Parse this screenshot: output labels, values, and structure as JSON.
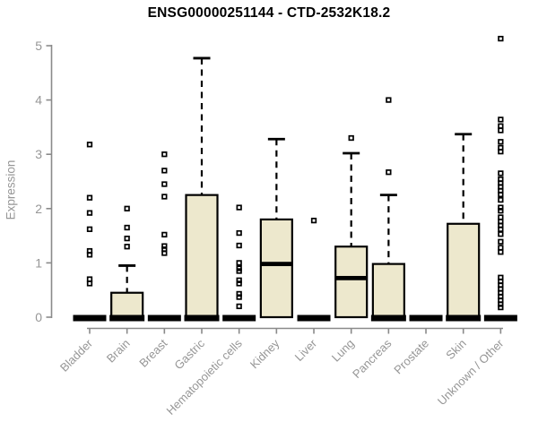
{
  "chart_data": {
    "type": "boxplot",
    "title": "ENSG00000251144 - CTD-2532K18.2",
    "ylabel": "Expression",
    "xlabel": "",
    "ylim": [
      0,
      5
    ],
    "yticks": [
      0,
      1,
      2,
      3,
      4,
      5
    ],
    "grid": false,
    "legend": "none",
    "categories": [
      "Bladder",
      "Brain",
      "Breast",
      "Gastric",
      "Hematopoietic cells",
      "Kidney",
      "Liver",
      "Lung",
      "Pancreas",
      "Prostate",
      "Skin",
      "Unknown / Other"
    ],
    "series": [
      {
        "category": "Bladder",
        "q1": 0,
        "median": 0,
        "q3": 0,
        "whisker_low": 0,
        "whisker_high": 0,
        "outliers": [
          0.62,
          0.7,
          1.15,
          1.22,
          1.62,
          1.92,
          2.2,
          3.18
        ]
      },
      {
        "category": "Brain",
        "q1": 0,
        "median": 0,
        "q3": 0.45,
        "whisker_low": 0,
        "whisker_high": 0.95,
        "outliers": [
          1.3,
          1.45,
          1.65,
          2.0
        ]
      },
      {
        "category": "Breast",
        "q1": 0,
        "median": 0,
        "q3": 0,
        "whisker_low": 0,
        "whisker_high": 0,
        "outliers": [
          1.18,
          1.25,
          1.31,
          1.52,
          2.22,
          2.45,
          2.7,
          3.0
        ]
      },
      {
        "category": "Gastric",
        "q1": 0,
        "median": 0,
        "q3": 2.25,
        "whisker_low": 0,
        "whisker_high": 4.77,
        "outliers": []
      },
      {
        "category": "Hematopoietic cells",
        "q1": 0,
        "median": 0,
        "q3": 0,
        "whisker_low": 0,
        "whisker_high": 0,
        "outliers": [
          0.2,
          0.37,
          0.43,
          0.62,
          0.68,
          0.85,
          0.9,
          1.0,
          1.32,
          1.55,
          2.02
        ]
      },
      {
        "category": "Kidney",
        "q1": 0,
        "median": 0.98,
        "q3": 1.8,
        "whisker_low": 0,
        "whisker_high": 3.28,
        "outliers": []
      },
      {
        "category": "Liver",
        "q1": 0,
        "median": 0,
        "q3": 0,
        "whisker_low": 0,
        "whisker_high": 0,
        "outliers": [
          1.78
        ]
      },
      {
        "category": "Lung",
        "q1": 0,
        "median": 0.72,
        "q3": 1.3,
        "whisker_low": 0,
        "whisker_high": 3.02,
        "outliers": [
          3.3
        ]
      },
      {
        "category": "Pancreas",
        "q1": 0,
        "median": 0,
        "q3": 0.98,
        "whisker_low": 0,
        "whisker_high": 2.25,
        "outliers": [
          2.67,
          4.0
        ]
      },
      {
        "category": "Prostate",
        "q1": 0,
        "median": 0,
        "q3": 0,
        "whisker_low": 0,
        "whisker_high": 0,
        "outliers": []
      },
      {
        "category": "Skin",
        "q1": 0,
        "median": 0,
        "q3": 1.72,
        "whisker_low": 0,
        "whisker_high": 3.37,
        "outliers": []
      },
      {
        "category": "Unknown / Other",
        "q1": 0,
        "median": 0,
        "q3": 0,
        "whisker_low": 0,
        "whisker_high": 0,
        "outliers": [
          5.13,
          3.64,
          3.52,
          3.44,
          3.23,
          3.12,
          3.05,
          2.65,
          2.54,
          2.47,
          2.4,
          2.33,
          2.26,
          2.16,
          2.02,
          1.96,
          1.84,
          1.76,
          1.69,
          1.62,
          1.53,
          1.39,
          1.28,
          1.2,
          0.73,
          0.66,
          0.59,
          0.52,
          0.45,
          0.38,
          0.31,
          0.24,
          0.18
        ]
      }
    ],
    "colors": {
      "box_fill": "#EDE8CD",
      "box_stroke": "#000000",
      "median": "#000000",
      "whisker": "#000000",
      "outlier": "#000000",
      "axis_line": "#8A8A8A",
      "tick_label": "#969696",
      "title": "#000000",
      "background": "#FFFFFF"
    }
  }
}
